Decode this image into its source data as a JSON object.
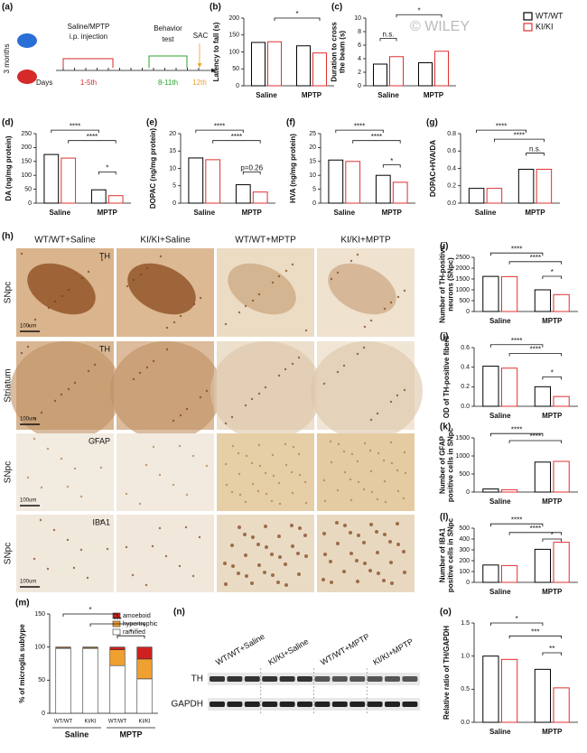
{
  "watermark": "© WILEY",
  "timeline": {
    "panel": "(a)",
    "age": "3 months",
    "injection": [
      "Saline/MPTP",
      "i.p. injection"
    ],
    "behavior": [
      "Behavior",
      "test"
    ],
    "sac": "SAC",
    "days": "Days",
    "inj_days": "1-5th",
    "beh_days": "8-11th",
    "sac_day": "12th"
  },
  "micrographs": {
    "panel": "(h)",
    "columns": [
      "WT/WT+Saline",
      "KI/KI+Saline",
      "WT/WT+MPTP",
      "KI/KI+MPTP"
    ],
    "rows": [
      {
        "region": "SNpc",
        "stain": "TH"
      },
      {
        "region": "Striatum",
        "stain": "TH"
      },
      {
        "region": "SNpc",
        "stain": "GFAP"
      },
      {
        "region": "SNpc",
        "stain": "IBA1"
      }
    ],
    "scale_bar": "100um"
  },
  "blot": {
    "panel": "(n)",
    "lanes": [
      "WT/WT+Saline",
      "KI/KI+Saline",
      "WT/WT+MPTP",
      "KI/KI+MPTP"
    ],
    "bands": [
      "TH",
      "GAPDH"
    ]
  },
  "chart_data": [
    {
      "type": "bar",
      "panel": "(b)",
      "ylabel": [
        "Latency to fall (s)"
      ],
      "categories": [
        "Saline",
        "MPTP"
      ],
      "series": [
        {
          "name": "WT/WT",
          "color": "#000000",
          "values": [
            128,
            118
          ]
        },
        {
          "name": "KI/KI",
          "color": "#e03030",
          "values": [
            130,
            97
          ]
        }
      ],
      "ylim": [
        0,
        200
      ],
      "yticks": [
        0,
        50,
        100,
        150,
        200
      ],
      "annotations": [
        "*"
      ]
    },
    {
      "type": "bar",
      "panel": "(c)",
      "ylabel": [
        "Duration to cross",
        "the beam (s)"
      ],
      "categories": [
        "Saline",
        "MPTP"
      ],
      "series": [
        {
          "name": "WT/WT",
          "color": "#000000",
          "values": [
            3.2,
            3.4
          ]
        },
        {
          "name": "KI/KI",
          "color": "#e03030",
          "values": [
            4.3,
            5.1
          ]
        }
      ],
      "ylim": [
        0,
        10
      ],
      "yticks": [
        0,
        2,
        4,
        6,
        8,
        10
      ],
      "annotations": [
        "n.s.",
        "*"
      ],
      "legend": "outside-right"
    },
    {
      "type": "bar",
      "panel": "(d)",
      "ylabel": [
        "DA (ng/mg protein)"
      ],
      "categories": [
        "Saline",
        "MPTP"
      ],
      "series": [
        {
          "name": "WT/WT",
          "color": "#000000",
          "values": [
            175,
            48
          ]
        },
        {
          "name": "KI/KI",
          "color": "#e03030",
          "values": [
            162,
            27
          ]
        }
      ],
      "ylim": [
        0,
        250
      ],
      "yticks": [
        0,
        50,
        100,
        150,
        200,
        250
      ],
      "annotations": [
        "****",
        "****",
        "*"
      ]
    },
    {
      "type": "bar",
      "panel": "(e)",
      "ylabel": [
        "DOPAC (ng/mg protein)"
      ],
      "categories": [
        "Saline",
        "MPTP"
      ],
      "series": [
        {
          "name": "WT/WT",
          "color": "#000000",
          "values": [
            13,
            5.3
          ]
        },
        {
          "name": "KI/KI",
          "color": "#e03030",
          "values": [
            12.5,
            3.2
          ]
        }
      ],
      "ylim": [
        0,
        20
      ],
      "yticks": [
        0,
        5,
        10,
        15,
        20
      ],
      "annotations": [
        "****",
        "****",
        "p=0.26"
      ]
    },
    {
      "type": "bar",
      "panel": "(f)",
      "ylabel": [
        "HVA (ng/mg protein)"
      ],
      "categories": [
        "Saline",
        "MPTP"
      ],
      "series": [
        {
          "name": "WT/WT",
          "color": "#000000",
          "values": [
            15.5,
            10
          ]
        },
        {
          "name": "KI/KI",
          "color": "#e03030",
          "values": [
            15,
            7.5
          ]
        }
      ],
      "ylim": [
        0,
        25
      ],
      "yticks": [
        0,
        5,
        10,
        15,
        20,
        25
      ],
      "annotations": [
        "****",
        "****",
        "*"
      ]
    },
    {
      "type": "bar",
      "panel": "(g)",
      "ylabel": [
        "DOPAC+HVA/DA"
      ],
      "categories": [
        "Saline",
        "MPTP"
      ],
      "series": [
        {
          "name": "WT/WT",
          "color": "#000000",
          "values": [
            0.17,
            0.39
          ]
        },
        {
          "name": "KI/KI",
          "color": "#e03030",
          "values": [
            0.17,
            0.39
          ]
        }
      ],
      "ylim": [
        0,
        0.8
      ],
      "yticks": [
        {
          "value": 0,
          "label": "0.0"
        },
        0.2,
        0.4,
        0.6,
        0.8
      ],
      "annotations": [
        "****",
        "****",
        "n.s."
      ]
    },
    {
      "type": "bar",
      "panel": "(i)",
      "ylabel": [
        "Number of TH-positive",
        "neurons (SNpc)"
      ],
      "categories": [
        "Saline",
        "MPTP"
      ],
      "series": [
        {
          "name": "WT/WT",
          "color": "#000000",
          "values": [
            1620,
            1000
          ]
        },
        {
          "name": "KI/KI",
          "color": "#e03030",
          "values": [
            1610,
            780
          ]
        }
      ],
      "ylim": [
        0,
        2500
      ],
      "yticks": [
        0,
        500,
        1000,
        1500,
        2000,
        2500
      ],
      "annotations": [
        "****",
        "****",
        "*"
      ]
    },
    {
      "type": "bar",
      "panel": "(j)",
      "ylabel": [
        "OD of TH-positive fibers"
      ],
      "categories": [
        "Saline",
        "MPTP"
      ],
      "series": [
        {
          "name": "WT/WT",
          "color": "#000000",
          "values": [
            0.41,
            0.2
          ]
        },
        {
          "name": "KI/KI",
          "color": "#e03030",
          "values": [
            0.39,
            0.1
          ]
        }
      ],
      "ylim": [
        0,
        0.6
      ],
      "yticks": [
        {
          "value": 0,
          "label": "0.0"
        },
        0.2,
        0.4,
        0.6
      ],
      "annotations": [
        "****",
        "****",
        "*"
      ]
    },
    {
      "type": "bar",
      "panel": "(k)",
      "ylabel": [
        "Number of GFAP",
        "positive cells in SNpc"
      ],
      "categories": [
        "Saline",
        "MPTP"
      ],
      "series": [
        {
          "name": "WT/WT",
          "color": "#000000",
          "values": [
            85,
            830
          ]
        },
        {
          "name": "KI/KI",
          "color": "#e03030",
          "values": [
            65,
            850
          ]
        }
      ],
      "ylim": [
        0,
        1500
      ],
      "yticks": [
        0,
        500,
        1000,
        1500
      ],
      "annotations": [
        "****",
        "****"
      ]
    },
    {
      "type": "bar",
      "panel": "(l)",
      "ylabel": [
        "Number of IBA1",
        "positive cells in SNpc"
      ],
      "categories": [
        "Saline",
        "MPTP"
      ],
      "series": [
        {
          "name": "WT/WT",
          "color": "#000000",
          "values": [
            160,
            305
          ]
        },
        {
          "name": "KI/KI",
          "color": "#e03030",
          "values": [
            155,
            370
          ]
        }
      ],
      "ylim": [
        0,
        500
      ],
      "yticks": [
        0,
        100,
        200,
        300,
        400,
        500
      ],
      "annotations": [
        "****",
        "****",
        "*"
      ]
    },
    {
      "type": "stacked_bar",
      "panel": "(m)",
      "ylabel": [
        "% of microglia subtype"
      ],
      "categories": [
        "WT/WT",
        "KI/KI",
        "WT/WT",
        "KI/KI"
      ],
      "group_labels": [
        "Saline",
        "MPTP"
      ],
      "series": [
        {
          "name": "ramified",
          "color": "#ffffff",
          "values": [
            98,
            98,
            72,
            52
          ]
        },
        {
          "name": "hypertrophic",
          "color": "#f0a030",
          "values": [
            1.5,
            1.5,
            24,
            30
          ]
        },
        {
          "name": "amoeboid",
          "color": "#d02020",
          "values": [
            0.5,
            0.5,
            4,
            18
          ]
        }
      ],
      "ylim": [
        0,
        150
      ],
      "yticks": [
        0,
        50,
        100,
        150
      ],
      "annotations": [
        "*",
        "***",
        "*"
      ],
      "legend": "upper right"
    },
    {
      "type": "bar",
      "panel": "(o)",
      "ylabel": [
        "Relative ratio of TH/GAPDH"
      ],
      "categories": [
        "Saline",
        "MPTP"
      ],
      "series": [
        {
          "name": "WT/WT",
          "color": "#000000",
          "values": [
            1.0,
            0.8
          ]
        },
        {
          "name": "KI/KI",
          "color": "#e03030",
          "values": [
            0.95,
            0.52
          ]
        }
      ],
      "ylim": [
        0,
        1.5
      ],
      "yticks": [
        {
          "value": 0,
          "label": "0.0"
        },
        0.5,
        {
          "value": 1,
          "label": "1.0"
        },
        1.5
      ],
      "annotations": [
        "*",
        "***",
        "**"
      ]
    }
  ]
}
